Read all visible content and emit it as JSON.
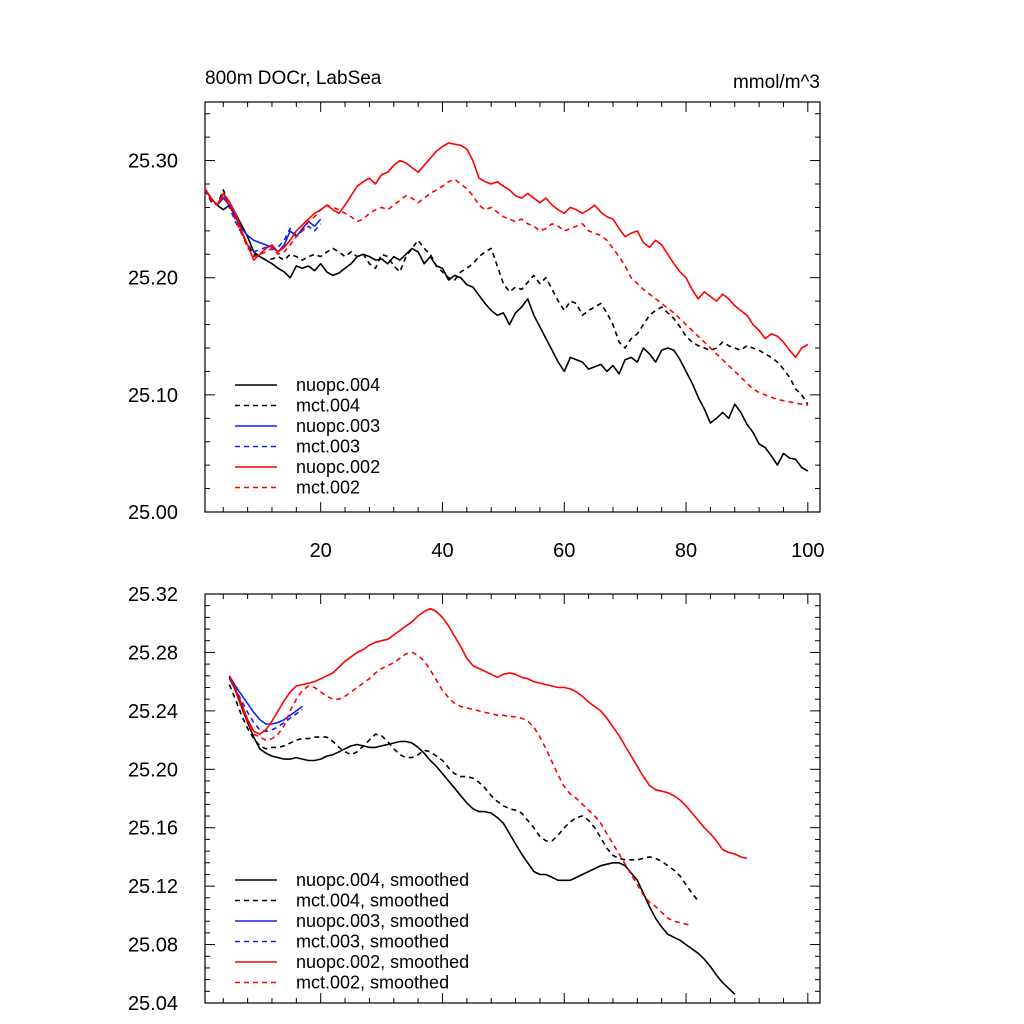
{
  "colors": {
    "black": "#000000",
    "blue": "#0b24fb",
    "red": "#ff0000"
  },
  "chart_data": [
    {
      "type": "line",
      "title": "800m DOCr, LabSea",
      "units": "mmol/m^3",
      "xlim": [
        1,
        102
      ],
      "ylim": [
        25.0,
        25.35
      ],
      "xticks": [
        20,
        40,
        60,
        80,
        100
      ],
      "xtick_labels": [
        "20",
        "40",
        "60",
        "80",
        "100"
      ],
      "yticks": [
        25.0,
        25.1,
        25.2,
        25.3
      ],
      "ytick_labels": [
        "25.00",
        "25.10",
        "25.20",
        "25.30"
      ],
      "legend_position": "lower-left",
      "series": [
        {
          "name": "nuopc.004",
          "color": "black",
          "dash": false,
          "x_start": 1,
          "values": [
            25.275,
            25.268,
            25.262,
            25.258,
            25.262,
            25.255,
            25.245,
            25.235,
            25.222,
            25.218,
            25.215,
            25.212,
            25.208,
            25.205,
            25.2,
            25.21,
            25.208,
            25.21,
            25.206,
            25.212,
            25.205,
            25.202,
            25.204,
            25.208,
            25.212,
            25.218,
            25.22,
            25.218,
            25.215,
            25.216,
            25.212,
            25.218,
            25.215,
            25.22,
            25.225,
            25.222,
            25.212,
            25.218,
            25.21,
            25.208,
            25.198,
            25.202,
            25.2,
            25.194,
            25.192,
            25.185,
            25.178,
            25.172,
            25.168,
            25.17,
            25.16,
            25.17,
            25.175,
            25.182,
            25.168,
            25.158,
            25.148,
            25.138,
            25.128,
            25.12,
            25.132,
            25.13,
            25.128,
            25.122,
            25.124,
            25.126,
            25.12,
            25.125,
            25.118,
            25.13,
            25.132,
            25.128,
            25.14,
            25.135,
            25.128,
            25.138,
            25.14,
            25.138,
            25.13,
            25.12,
            25.11,
            25.098,
            25.088,
            25.076,
            25.08,
            25.085,
            25.08,
            25.092,
            25.085,
            25.075,
            25.068,
            25.058,
            25.055,
            25.048,
            25.04,
            25.05,
            25.046,
            25.045,
            25.038,
            25.035
          ]
        },
        {
          "name": "mct.004",
          "color": "black",
          "dash": true,
          "x_start": 1,
          "values": [
            25.275,
            25.265,
            25.262,
            25.275,
            25.262,
            25.25,
            25.238,
            25.228,
            25.22,
            25.218,
            25.215,
            25.216,
            25.218,
            25.215,
            25.22,
            25.218,
            25.215,
            25.218,
            25.22,
            25.218,
            25.222,
            25.225,
            25.222,
            25.218,
            25.222,
            25.218,
            25.22,
            25.212,
            25.208,
            25.22,
            25.218,
            25.21,
            25.205,
            25.218,
            25.225,
            25.232,
            25.225,
            25.22,
            25.21,
            25.205,
            25.2,
            25.198,
            25.205,
            25.208,
            25.212,
            25.218,
            25.222,
            25.225,
            25.21,
            25.195,
            25.188,
            25.192,
            25.19,
            25.196,
            25.202,
            25.195,
            25.2,
            25.19,
            25.18,
            25.172,
            25.18,
            25.178,
            25.168,
            25.172,
            25.175,
            25.178,
            25.17,
            25.16,
            25.145,
            25.14,
            25.148,
            25.152,
            25.16,
            25.168,
            25.172,
            25.175,
            25.17,
            25.165,
            25.158,
            25.15,
            25.145,
            25.142,
            25.14,
            25.138,
            25.14,
            25.145,
            25.142,
            25.14,
            25.138,
            25.142,
            25.14,
            25.138,
            25.135,
            25.132,
            25.128,
            25.122,
            25.115,
            25.105,
            25.1,
            25.092
          ]
        },
        {
          "name": "nuopc.003",
          "color": "blue",
          "dash": false,
          "x_start": 1,
          "values": [
            25.275,
            25.268,
            25.262,
            25.268,
            25.262,
            25.252,
            25.242,
            25.236,
            25.232,
            25.23,
            25.228,
            25.226,
            25.222,
            25.228,
            25.24,
            25.235,
            25.242,
            25.248,
            25.244,
            25.25
          ]
        },
        {
          "name": "mct.003",
          "color": "blue",
          "dash": true,
          "x_start": 1,
          "values": [
            25.275,
            25.266,
            25.262,
            25.272,
            25.26,
            25.248,
            25.238,
            25.228,
            25.222,
            25.224,
            25.226,
            25.224,
            25.226,
            25.232,
            25.242,
            25.236,
            25.24,
            25.244,
            25.24,
            25.246
          ]
        },
        {
          "name": "nuopc.002",
          "color": "red",
          "dash": false,
          "x_start": 1,
          "values": [
            25.276,
            25.268,
            25.262,
            25.272,
            25.265,
            25.255,
            25.24,
            25.228,
            25.215,
            25.22,
            25.225,
            25.228,
            25.222,
            25.226,
            25.232,
            25.24,
            25.245,
            25.25,
            25.255,
            25.258,
            25.262,
            25.258,
            25.255,
            25.262,
            25.27,
            25.278,
            25.282,
            25.285,
            25.28,
            25.288,
            25.29,
            25.296,
            25.3,
            25.298,
            25.294,
            25.29,
            25.296,
            25.302,
            25.308,
            25.312,
            25.315,
            25.314,
            25.313,
            25.31,
            25.3,
            25.285,
            25.282,
            25.28,
            25.282,
            25.278,
            25.275,
            25.27,
            25.268,
            25.272,
            25.268,
            25.264,
            25.268,
            25.262,
            25.258,
            25.255,
            25.26,
            25.258,
            25.255,
            25.258,
            25.262,
            25.256,
            25.252,
            25.25,
            25.242,
            25.235,
            25.238,
            25.24,
            25.23,
            25.226,
            25.232,
            25.228,
            25.22,
            25.212,
            25.205,
            25.2,
            25.19,
            25.182,
            25.188,
            25.184,
            25.18,
            25.186,
            25.182,
            25.176,
            25.172,
            25.168,
            25.16,
            25.155,
            25.148,
            25.152,
            25.15,
            25.145,
            25.138,
            25.132,
            25.14,
            25.143
          ]
        },
        {
          "name": "mct.002",
          "color": "red",
          "dash": true,
          "x_start": 1,
          "values": [
            25.276,
            25.266,
            25.262,
            25.27,
            25.262,
            25.25,
            25.238,
            25.226,
            25.218,
            25.22,
            25.222,
            25.225,
            25.22,
            25.222,
            25.228,
            25.235,
            25.24,
            25.248,
            25.252,
            25.258,
            25.262,
            25.26,
            25.258,
            25.255,
            25.252,
            25.248,
            25.25,
            25.255,
            25.258,
            25.26,
            25.258,
            25.262,
            25.266,
            25.27,
            25.268,
            25.264,
            25.268,
            25.272,
            25.275,
            25.278,
            25.282,
            25.284,
            25.28,
            25.276,
            25.27,
            25.262,
            25.258,
            25.26,
            25.256,
            25.252,
            25.25,
            25.248,
            25.25,
            25.246,
            25.244,
            25.24,
            25.242,
            25.246,
            25.244,
            25.24,
            25.242,
            25.244,
            25.246,
            25.24,
            25.238,
            25.236,
            25.232,
            25.225,
            25.218,
            25.21,
            25.2,
            25.195,
            25.19,
            25.186,
            25.182,
            25.178,
            25.174,
            25.17,
            25.165,
            25.16,
            25.155,
            25.15,
            25.145,
            25.14,
            25.135,
            25.13,
            25.125,
            25.12,
            25.115,
            25.11,
            25.105,
            25.102,
            25.1,
            25.098,
            25.096,
            25.095,
            25.094,
            25.093,
            25.092,
            25.091
          ]
        }
      ]
    },
    {
      "type": "line",
      "title": "",
      "xlim": [
        1,
        102
      ],
      "ylim": [
        25.04,
        25.32
      ],
      "xticks": [
        20,
        40,
        60,
        80,
        100
      ],
      "xtick_labels": [],
      "yticks": [
        25.04,
        25.08,
        25.12,
        25.16,
        25.2,
        25.24,
        25.28,
        25.32
      ],
      "ytick_labels": [
        "25.04",
        "25.08",
        "25.12",
        "25.16",
        "25.20",
        "25.24",
        "25.28",
        "25.32"
      ],
      "legend_position": "lower-left",
      "series": [
        {
          "name": "nuopc.004, smoothed",
          "color": "black",
          "dash": false,
          "x_start": 5,
          "values": [
            25.263,
            25.254,
            25.243,
            25.232,
            25.222,
            25.214,
            25.211,
            25.209,
            25.208,
            25.207,
            25.207,
            25.208,
            25.207,
            25.206,
            25.206,
            25.207,
            25.209,
            25.21,
            25.212,
            25.214,
            25.216,
            25.217,
            25.216,
            25.215,
            25.215,
            25.216,
            25.217,
            25.218,
            25.219,
            25.219,
            25.218,
            25.215,
            25.211,
            25.206,
            25.202,
            25.197,
            25.192,
            25.187,
            25.182,
            25.177,
            25.173,
            25.171,
            25.171,
            25.17,
            25.167,
            25.163,
            25.156,
            25.149,
            25.142,
            25.136,
            25.13,
            25.128,
            25.128,
            25.126,
            25.124,
            25.124,
            25.124,
            25.126,
            25.128,
            25.13,
            25.132,
            25.134,
            25.135,
            25.136,
            25.136,
            25.134,
            25.129,
            25.124,
            25.115,
            25.106,
            25.098,
            25.092,
            25.087,
            25.085,
            25.083,
            25.08,
            25.077,
            25.074,
            25.07,
            25.065,
            25.059,
            25.054,
            25.05,
            25.046
          ]
        },
        {
          "name": "mct.004, smoothed",
          "color": "black",
          "dash": true,
          "x_start": 5,
          "values": [
            25.258,
            25.248,
            25.237,
            25.228,
            25.221,
            25.216,
            25.214,
            25.215,
            25.215,
            25.216,
            25.218,
            25.22,
            25.221,
            25.221,
            25.222,
            25.222,
            25.222,
            25.219,
            25.215,
            25.212,
            25.21,
            25.212,
            25.216,
            25.22,
            25.224,
            25.223,
            25.219,
            25.214,
            25.21,
            25.208,
            25.208,
            25.21,
            25.213,
            25.212,
            25.209,
            25.206,
            25.201,
            25.197,
            25.195,
            25.195,
            25.194,
            25.191,
            25.187,
            25.182,
            25.178,
            25.175,
            25.173,
            25.172,
            25.17,
            25.165,
            25.16,
            25.154,
            25.151,
            25.151,
            25.155,
            25.16,
            25.164,
            25.167,
            25.168,
            25.165,
            25.16,
            25.153,
            25.146,
            25.141,
            25.139,
            25.138,
            25.138,
            25.138,
            25.139,
            25.14,
            25.139,
            25.137,
            25.134,
            25.131,
            25.127,
            25.121,
            25.115,
            25.11
          ]
        },
        {
          "name": "nuopc.003, smoothed",
          "color": "blue",
          "dash": false,
          "x_start": 5,
          "values": [
            25.264,
            25.257,
            25.251,
            25.245,
            25.239,
            25.234,
            25.231,
            25.231,
            25.232,
            25.234,
            25.237,
            25.24,
            25.243
          ]
        },
        {
          "name": "mct.003, smoothed",
          "color": "blue",
          "dash": true,
          "x_start": 5,
          "values": [
            25.262,
            25.255,
            25.247,
            25.239,
            25.232,
            25.227,
            25.226,
            25.227,
            25.229,
            25.232,
            25.235,
            25.238,
            25.241
          ]
        },
        {
          "name": "nuopc.002, smoothed",
          "color": "red",
          "dash": false,
          "x_start": 5,
          "values": [
            25.264,
            25.255,
            25.245,
            25.234,
            25.226,
            25.224,
            25.227,
            25.233,
            25.24,
            25.247,
            25.253,
            25.257,
            25.258,
            25.259,
            25.26,
            25.262,
            25.264,
            25.266,
            25.27,
            25.274,
            25.277,
            25.28,
            25.282,
            25.285,
            25.287,
            25.288,
            25.289,
            25.292,
            25.295,
            25.298,
            25.301,
            25.305,
            25.308,
            25.31,
            25.308,
            25.304,
            25.298,
            25.291,
            25.284,
            25.276,
            25.271,
            25.269,
            25.267,
            25.265,
            25.263,
            25.265,
            25.266,
            25.265,
            25.263,
            25.262,
            25.26,
            25.259,
            25.258,
            25.257,
            25.256,
            25.256,
            25.255,
            25.253,
            25.25,
            25.246,
            25.243,
            25.24,
            25.235,
            25.229,
            25.223,
            25.216,
            25.209,
            25.202,
            25.195,
            25.189,
            25.186,
            25.185,
            25.184,
            25.182,
            25.179,
            25.175,
            25.17,
            25.165,
            25.16,
            25.156,
            25.151,
            25.145,
            25.143,
            25.142,
            25.14,
            25.139
          ]
        },
        {
          "name": "mct.002, smoothed",
          "color": "red",
          "dash": true,
          "x_start": 5,
          "values": [
            25.264,
            25.254,
            25.242,
            25.232,
            25.224,
            25.222,
            25.22,
            25.221,
            25.224,
            25.23,
            25.24,
            25.248,
            25.254,
            25.257,
            25.256,
            25.253,
            25.25,
            25.248,
            25.248,
            25.25,
            25.253,
            25.256,
            25.259,
            25.262,
            25.266,
            25.269,
            25.271,
            25.273,
            25.276,
            25.279,
            25.28,
            25.278,
            25.274,
            25.268,
            25.261,
            25.254,
            25.249,
            25.245,
            25.243,
            25.242,
            25.241,
            25.24,
            25.239,
            25.238,
            25.237,
            25.237,
            25.236,
            25.236,
            25.235,
            25.233,
            25.229,
            25.222,
            25.214,
            25.205,
            25.196,
            25.188,
            25.183,
            25.18,
            25.176,
            25.172,
            25.168,
            25.163,
            25.156,
            25.149,
            25.142,
            25.135,
            25.128,
            25.121,
            25.114,
            25.109,
            25.106,
            25.102,
            25.098,
            25.096,
            25.095,
            25.094,
            25.093
          ]
        }
      ]
    }
  ]
}
